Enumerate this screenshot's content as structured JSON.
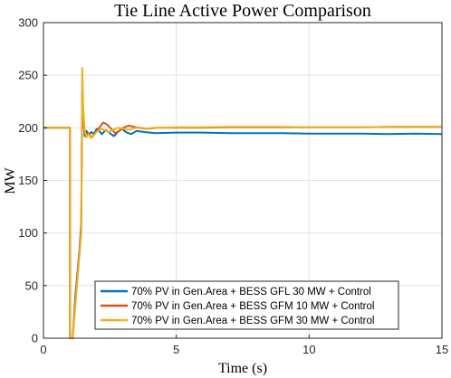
{
  "chart_data": {
    "type": "line",
    "title": "Tie Line Active Power Comparison",
    "xlabel": "Time (s)",
    "ylabel": "MW",
    "xlim": [
      0,
      15
    ],
    "ylim": [
      0,
      300
    ],
    "xticks": [
      0,
      5,
      10,
      15
    ],
    "yticks": [
      0,
      50,
      100,
      150,
      200,
      250,
      300
    ],
    "grid": true,
    "legend_position": "bottom-center",
    "series": [
      {
        "name": "70% PV in Gen.Area + BESS GFL 30 MW + Control",
        "color": "#0072BD",
        "x": [
          0,
          1.0,
          1.0,
          1.1,
          1.2,
          1.28,
          1.36,
          1.42,
          1.46,
          1.5,
          1.55,
          1.62,
          1.7,
          1.8,
          1.9,
          2.0,
          2.1,
          2.2,
          2.35,
          2.5,
          2.65,
          2.8,
          2.95,
          3.1,
          3.3,
          3.5,
          3.8,
          4.2,
          5,
          6,
          7,
          8,
          9,
          10,
          11,
          12,
          13,
          14,
          15
        ],
        "y": [
          200,
          200,
          0,
          0,
          40,
          62,
          85,
          110,
          235,
          210,
          192,
          197,
          193,
          196,
          194,
          199,
          197,
          194,
          198,
          195,
          192,
          196,
          199,
          196,
          194,
          197,
          196,
          195,
          195.5,
          195.5,
          195,
          195,
          195,
          194.5,
          194.5,
          194.5,
          194,
          194.5,
          194
        ]
      },
      {
        "name": "70% PV in Gen.Area + BESS GFM 10 MW + Control",
        "color": "#D95319",
        "x": [
          0,
          1.0,
          1.0,
          1.1,
          1.2,
          1.28,
          1.36,
          1.42,
          1.46,
          1.5,
          1.55,
          1.62,
          1.7,
          1.8,
          1.9,
          2.0,
          2.1,
          2.25,
          2.4,
          2.55,
          2.7,
          2.85,
          3.0,
          3.2,
          3.4,
          3.6,
          3.9,
          4.3,
          5,
          6,
          7,
          8,
          9,
          10,
          11,
          12,
          13,
          14,
          15
        ],
        "y": [
          200,
          200,
          0,
          0,
          35,
          60,
          82,
          105,
          230,
          205,
          195,
          193,
          195,
          191,
          193,
          197,
          200,
          205,
          203,
          199,
          195,
          197,
          200,
          202,
          201,
          200,
          199,
          200,
          200,
          200,
          200.5,
          200.5,
          200.5,
          200.5,
          200.5,
          200.5,
          201,
          201,
          201
        ]
      },
      {
        "name": "70% PV in Gen.Area + BESS GFM 30 MW + Control",
        "color": "#EDB120",
        "x": [
          0,
          1.0,
          1.0,
          1.1,
          1.2,
          1.28,
          1.36,
          1.42,
          1.46,
          1.5,
          1.55,
          1.62,
          1.7,
          1.8,
          1.9,
          2.0,
          2.15,
          2.3,
          2.45,
          2.6,
          2.8,
          3.0,
          3.2,
          3.5,
          3.8,
          4.2,
          5,
          6,
          7,
          8,
          9,
          10,
          11,
          12,
          13,
          14,
          15
        ],
        "y": [
          200,
          200,
          0,
          0,
          30,
          55,
          80,
          100,
          257,
          218,
          198,
          191,
          194,
          190,
          193,
          196,
          199,
          198,
          196,
          198,
          200,
          199,
          198,
          200,
          199,
          200,
          200.5,
          200.5,
          201,
          201,
          201,
          200.5,
          200.5,
          200.5,
          201,
          201,
          201
        ]
      }
    ]
  }
}
